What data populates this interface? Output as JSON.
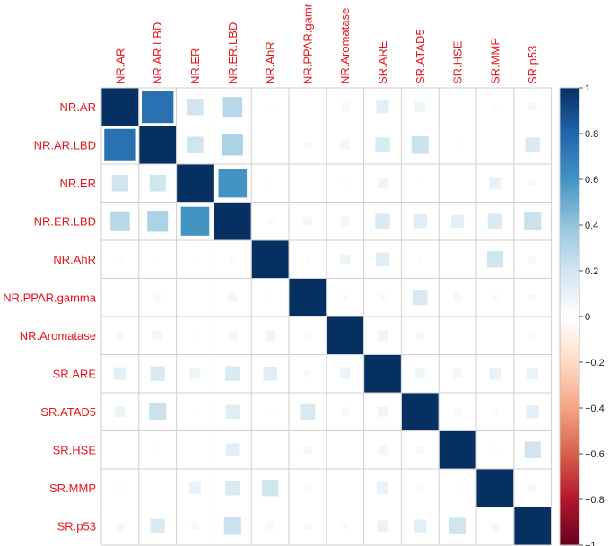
{
  "chart_data": {
    "type": "heatmap",
    "variables": [
      "NR.AR",
      "NR.AR.LBD",
      "NR.ER",
      "NR.ER.LBD",
      "NR.AhR",
      "NR.PPAR.gamma",
      "NR.Aromatase",
      "SR.ARE",
      "SR.ATAD5",
      "SR.HSE",
      "SR.MMP",
      "SR.p53"
    ],
    "column_labels": [
      "NR.AR",
      "NR.AR.LBD",
      "NR.ER",
      "NR.ER.LBD",
      "NR.AhR",
      "NR.PPAR.gamr",
      "NR.Aromatase",
      "SR.ARE",
      "SR.ATAD5",
      "SR.HSE",
      "SR.MMP",
      "SR.p53"
    ],
    "matrix": [
      [
        1.0,
        0.75,
        0.2,
        0.28,
        0.02,
        0.0,
        0.05,
        0.12,
        0.08,
        0.01,
        0.02,
        0.05
      ],
      [
        0.75,
        1.0,
        0.2,
        0.32,
        0.01,
        0.04,
        0.06,
        0.16,
        0.22,
        0.02,
        0.01,
        0.16
      ],
      [
        0.2,
        0.2,
        1.0,
        0.6,
        0.02,
        0.0,
        0.02,
        0.08,
        0.01,
        0.0,
        0.1,
        0.04
      ],
      [
        0.28,
        0.32,
        0.6,
        1.0,
        0.03,
        0.06,
        0.06,
        0.16,
        0.14,
        0.12,
        0.16,
        0.22
      ],
      [
        0.02,
        0.01,
        0.02,
        0.03,
        1.0,
        0.02,
        0.08,
        0.14,
        0.02,
        0.0,
        0.2,
        0.04
      ],
      [
        0.0,
        0.04,
        0.0,
        0.06,
        0.02,
        1.0,
        0.03,
        0.04,
        0.17,
        0.05,
        0.03,
        0.04
      ],
      [
        0.05,
        0.06,
        0.02,
        0.06,
        0.08,
        0.03,
        1.0,
        0.08,
        0.05,
        0.0,
        0.01,
        0.03
      ],
      [
        0.12,
        0.16,
        0.08,
        0.16,
        0.14,
        0.04,
        0.08,
        1.0,
        0.07,
        0.06,
        0.1,
        0.09
      ],
      [
        0.08,
        0.22,
        0.01,
        0.14,
        0.02,
        0.17,
        0.05,
        0.07,
        1.0,
        0.04,
        0.03,
        0.12
      ],
      [
        0.01,
        0.02,
        0.0,
        0.12,
        0.0,
        0.05,
        0.0,
        0.06,
        0.04,
        1.0,
        0.02,
        0.2
      ],
      [
        0.02,
        0.01,
        0.1,
        0.16,
        0.2,
        0.03,
        0.01,
        0.1,
        0.03,
        0.02,
        1.0,
        0.05
      ],
      [
        0.05,
        0.16,
        0.04,
        0.22,
        0.04,
        0.04,
        0.03,
        0.09,
        0.12,
        0.2,
        0.05,
        1.0
      ]
    ],
    "colorbar": {
      "range": [
        -1,
        1
      ],
      "tick_labels": [
        "1",
        "0.8",
        "0.6",
        "0.4",
        "0.2",
        "0",
        "−0.2",
        "−0.4",
        "−0.6",
        "−0.8",
        "−1"
      ],
      "tick_values": [
        1,
        0.8,
        0.6,
        0.4,
        0.2,
        0,
        -0.2,
        -0.4,
        -0.6,
        -0.8,
        -1
      ],
      "colors": [
        "#67001F",
        "#B2182B",
        "#D6604D",
        "#F4A582",
        "#FDDBC7",
        "#FFFFFF",
        "#D1E5F0",
        "#92C5DE",
        "#4393C3",
        "#2166AC",
        "#053061"
      ]
    },
    "method": "square",
    "title": "",
    "xlabel": "",
    "ylabel": ""
  }
}
